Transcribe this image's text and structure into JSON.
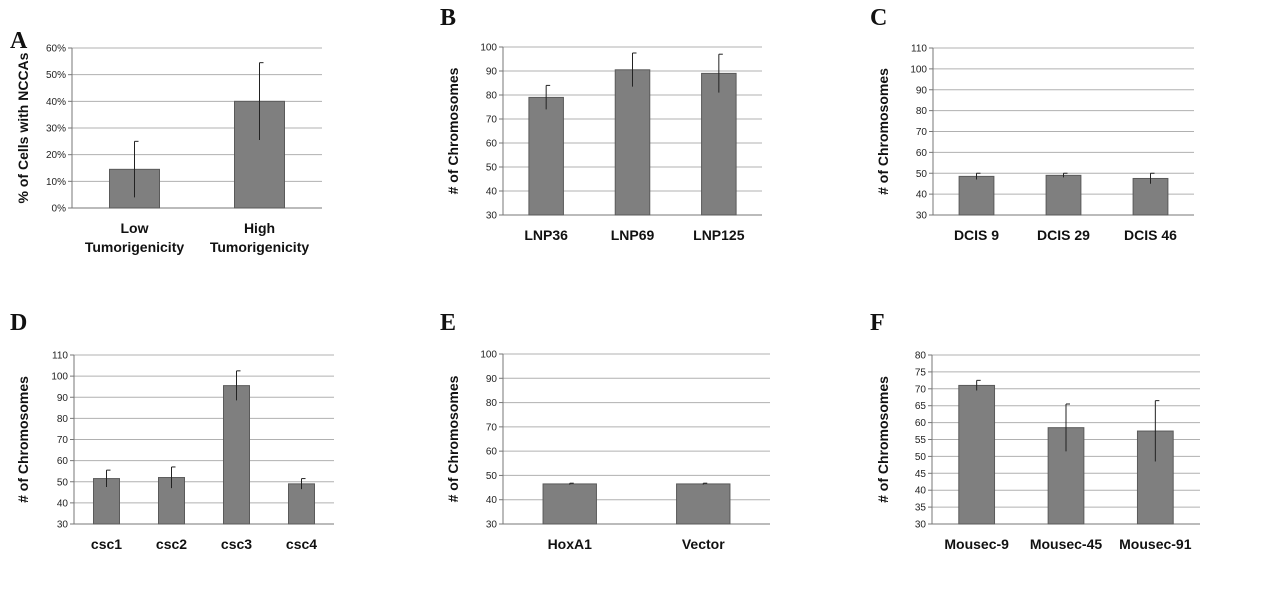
{
  "chart_data": [
    {
      "panel": "A",
      "type": "bar",
      "categories": [
        [
          "Low",
          "Tumorigenicity"
        ],
        [
          "High",
          "Tumorigenicity"
        ]
      ],
      "values": [
        14.5,
        40
      ],
      "error": [
        10.5,
        14.5
      ],
      "ylabel": "% of Cells with NCCAs",
      "ylim": [
        0,
        60
      ],
      "yticks": [
        0,
        10,
        20,
        30,
        40,
        50,
        60
      ],
      "ytick_labels": [
        "0%",
        "10%",
        "20%",
        "30%",
        "40%",
        "50%",
        "60%"
      ],
      "grid": true,
      "bar_color": "#7f7f7f"
    },
    {
      "panel": "B",
      "type": "bar",
      "categories": [
        [
          "LNP36"
        ],
        [
          "LNP69"
        ],
        [
          "LNP125"
        ]
      ],
      "values": [
        79,
        90.5,
        89
      ],
      "error": [
        5,
        7,
        8
      ],
      "ylabel": "# of Chromosomes",
      "ylim": [
        30,
        100
      ],
      "yticks": [
        30,
        40,
        50,
        60,
        70,
        80,
        90,
        100
      ],
      "ytick_labels": [
        "30",
        "40",
        "50",
        "60",
        "70",
        "80",
        "90",
        "100"
      ],
      "grid": true,
      "bar_color": "#7f7f7f"
    },
    {
      "panel": "C",
      "type": "bar",
      "categories": [
        [
          "DCIS 9"
        ],
        [
          "DCIS 29"
        ],
        [
          "DCIS 46"
        ]
      ],
      "values": [
        48.5,
        49,
        47.5
      ],
      "error": [
        1.5,
        1,
        2.5
      ],
      "ylabel": "# of Chromosomes",
      "ylim": [
        30,
        110
      ],
      "yticks": [
        30,
        40,
        50,
        60,
        70,
        80,
        90,
        100,
        110
      ],
      "ytick_labels": [
        "30",
        "40",
        "50",
        "60",
        "70",
        "80",
        "90",
        "100",
        "110"
      ],
      "grid": true,
      "bar_color": "#7f7f7f"
    },
    {
      "panel": "D",
      "type": "bar",
      "categories": [
        [
          "csc1"
        ],
        [
          "csc2"
        ],
        [
          "csc3"
        ],
        [
          "csc4"
        ]
      ],
      "values": [
        51.5,
        52,
        95.5,
        49
      ],
      "error": [
        4,
        5,
        7,
        2.5
      ],
      "ylabel": "# of Chromosomes",
      "ylim": [
        30,
        110
      ],
      "yticks": [
        30,
        40,
        50,
        60,
        70,
        80,
        90,
        100,
        110
      ],
      "ytick_labels": [
        "30",
        "40",
        "50",
        "60",
        "70",
        "80",
        "90",
        "100",
        "110"
      ],
      "grid": true,
      "bar_color": "#7f7f7f"
    },
    {
      "panel": "E",
      "type": "bar",
      "categories": [
        [
          "HoxA1"
        ],
        [
          "Vector"
        ]
      ],
      "values": [
        46.5,
        46.5
      ],
      "error": [
        0.3,
        0.3
      ],
      "ylabel": "# of Chromosomes",
      "ylim": [
        30,
        100
      ],
      "yticks": [
        30,
        40,
        50,
        60,
        70,
        80,
        90,
        100
      ],
      "ytick_labels": [
        "30",
        "40",
        "50",
        "60",
        "70",
        "80",
        "90",
        "100"
      ],
      "grid": true,
      "bar_color": "#7f7f7f"
    },
    {
      "panel": "F",
      "type": "bar",
      "categories": [
        [
          "Mousec-9"
        ],
        [
          "Mousec-45"
        ],
        [
          "Mousec-91"
        ]
      ],
      "values": [
        71,
        58.5,
        57.5
      ],
      "error": [
        1.5,
        7,
        9
      ],
      "ylabel": "# of Chromosomes",
      "ylim": [
        30,
        80
      ],
      "yticks": [
        30,
        35,
        40,
        45,
        50,
        55,
        60,
        65,
        70,
        75,
        80
      ],
      "ytick_labels": [
        "30",
        "35",
        "40",
        "45",
        "50",
        "55",
        "60",
        "65",
        "70",
        "75",
        "80"
      ],
      "grid": true,
      "bar_color": "#7f7f7f"
    }
  ]
}
